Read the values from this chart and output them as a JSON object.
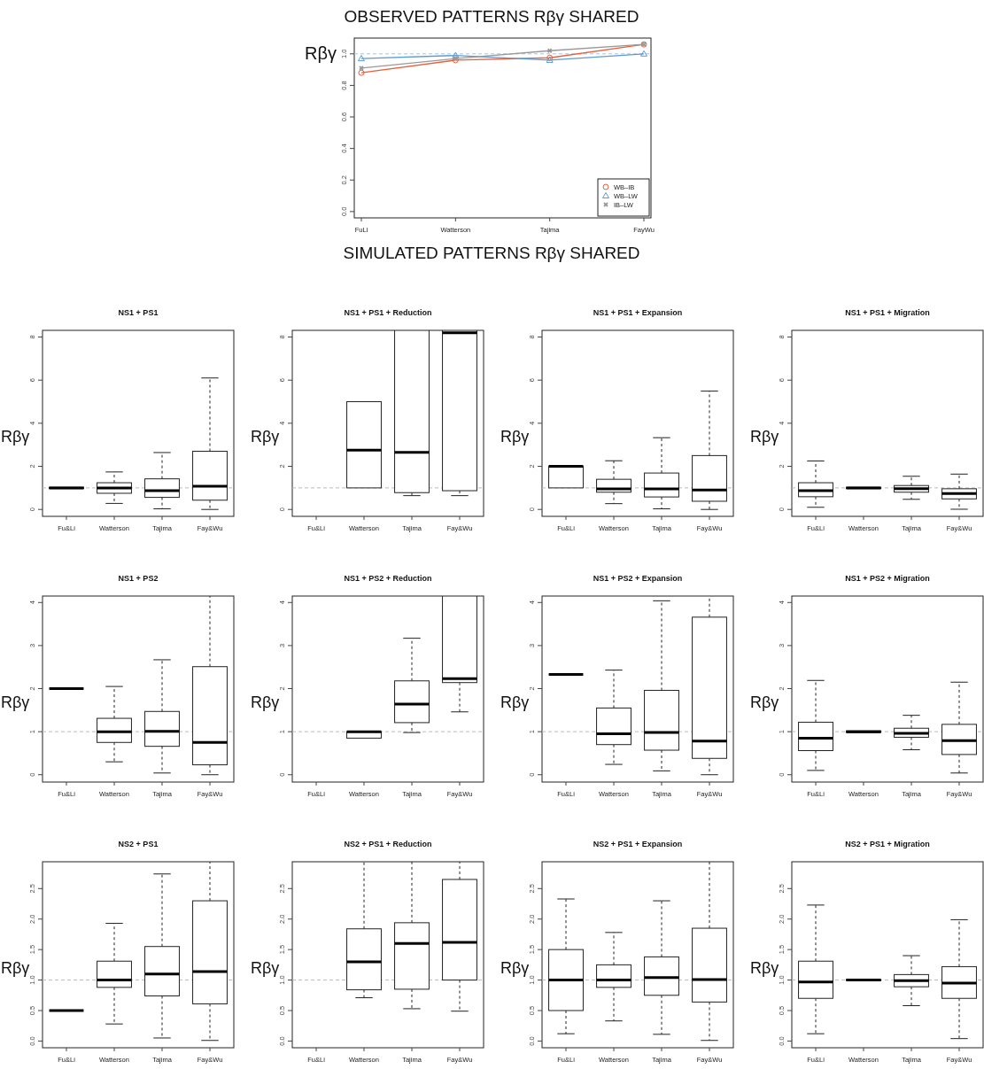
{
  "chart_data": [
    {
      "type": "line",
      "title": "OBSERVED PATTERNS Rβγ SHARED",
      "ylabel": "Rβγ",
      "annotations": [
        "SIMULATED PATTERNS Rβγ SHARED"
      ],
      "categories": [
        "FuLi",
        "Watterson",
        "Tajima",
        "FayWu"
      ],
      "ylim": [
        -0.04,
        1.1
      ],
      "yticks": [
        {
          "value": 0,
          "label": "0.0"
        },
        {
          "value": 0.2,
          "label": "0.2"
        },
        {
          "value": 0.4,
          "label": "0.4"
        },
        {
          "value": 0.6,
          "label": "0.6"
        },
        {
          "value": 0.8,
          "label": "0.8"
        },
        {
          "value": 1,
          "label": "1.0"
        }
      ],
      "grid": false,
      "legend": "bottom right",
      "ref_lines": [
        {
          "axis": "y",
          "value": 1,
          "color": "#a9c4dc",
          "line_style": "dashed"
        }
      ],
      "series": [
        {
          "name": "WB–IB",
          "color": "#e8603c",
          "marker": "circle",
          "values": [
            0.88,
            0.96,
            0.975,
            1.06
          ]
        },
        {
          "name": "WB–LW",
          "color": "#5b9bd5",
          "marker": "triangle",
          "values": [
            0.97,
            0.99,
            0.96,
            1.0
          ]
        },
        {
          "name": "IB–LW",
          "color": "#999999",
          "marker": "cross",
          "values": [
            0.91,
            0.97,
            1.02,
            1.06
          ]
        }
      ]
    },
    {
      "type": "box",
      "title": "NS1 + PS1",
      "ylabel": "Rβγ",
      "categories": [
        "Fu&Li",
        "Watterson",
        "Tajima",
        "Fay&Wu"
      ],
      "ylim": [
        -0.32,
        8.31
      ],
      "yticks": [
        0,
        2,
        4,
        6,
        8
      ],
      "ref_lines": [
        {
          "axis": "y",
          "value": 1,
          "color": "#bbbbbb",
          "line_style": "dashed"
        }
      ],
      "boxes": [
        {
          "low": 1,
          "q1": 0.97,
          "median": 1,
          "q3": 1.03,
          "high": 1
        },
        {
          "low": 0.28,
          "q1": 0.75,
          "median": 1.0,
          "q3": 1.24,
          "high": 1.74
        },
        {
          "low": 0.03,
          "q1": 0.56,
          "median": 0.87,
          "q3": 1.42,
          "high": 2.64
        },
        {
          "low": 0,
          "q1": 0.43,
          "median": 1.08,
          "q3": 2.7,
          "high": 6.1
        }
      ]
    },
    {
      "type": "box",
      "title": "NS1 + PS1 + Reduction",
      "ylabel": "Rβγ",
      "categories": [
        "Fu&Li",
        "Watterson",
        "Tajima",
        "Fay&Wu"
      ],
      "ylim": [
        -0.32,
        8.31
      ],
      "yticks": [
        0,
        2,
        4,
        6,
        8
      ],
      "ref_lines": [
        {
          "axis": "y",
          "value": 1,
          "color": "#bbbbbb",
          "line_style": "dashed"
        }
      ],
      "boxes": [
        null,
        {
          "low": 1,
          "q1": 1,
          "median": 2.75,
          "q3": 5,
          "high": 5
        },
        {
          "low": 0.64,
          "q1": 0.78,
          "median": 2.65,
          "q3": 8.31,
          "high": 8.31
        },
        {
          "low": 0.64,
          "q1": 0.87,
          "median": 8.2,
          "q3": 8.31,
          "high": 8.31
        }
      ]
    },
    {
      "type": "box",
      "title": "NS1 + PS1 + Expansion",
      "ylabel": "Rβγ",
      "categories": [
        "Fu&Li",
        "Watterson",
        "Tajima",
        "Fay&Wu"
      ],
      "ylim": [
        -0.32,
        8.31
      ],
      "yticks": [
        0,
        2,
        4,
        6,
        8
      ],
      "ref_lines": [
        {
          "axis": "y",
          "value": 1,
          "color": "#bbbbbb",
          "line_style": "dashed"
        }
      ],
      "boxes": [
        {
          "low": 1,
          "q1": 1,
          "median": 2,
          "q3": 2,
          "high": 2
        },
        {
          "low": 0.27,
          "q1": 0.8,
          "median": 0.95,
          "q3": 1.4,
          "high": 2.26
        },
        {
          "low": 0.03,
          "q1": 0.58,
          "median": 0.95,
          "q3": 1.69,
          "high": 3.33
        },
        {
          "low": 0,
          "q1": 0.38,
          "median": 0.9,
          "q3": 2.5,
          "high": 5.49
        }
      ]
    },
    {
      "type": "box",
      "title": "NS1 + PS1 + Migration",
      "ylabel": "Rβγ",
      "categories": [
        "Fu&Li",
        "Watterson",
        "Tajima",
        "Fay&Wu"
      ],
      "ylim": [
        -0.32,
        8.31
      ],
      "yticks": [
        0,
        2,
        4,
        6,
        8
      ],
      "ref_lines": [
        {
          "axis": "y",
          "value": 1,
          "color": "#bbbbbb",
          "line_style": "dashed"
        }
      ],
      "boxes": [
        {
          "low": 0.1,
          "q1": 0.59,
          "median": 0.87,
          "q3": 1.24,
          "high": 2.25
        },
        {
          "low": 1,
          "q1": 0.97,
          "median": 1,
          "q3": 1.03,
          "high": 1
        },
        {
          "low": 0.47,
          "q1": 0.8,
          "median": 0.96,
          "q3": 1.11,
          "high": 1.54
        },
        {
          "low": 0.01,
          "q1": 0.49,
          "median": 0.74,
          "q3": 0.96,
          "high": 1.64
        }
      ]
    },
    {
      "type": "box",
      "title": "NS1 + PS2",
      "ylabel": "Rβγ",
      "categories": [
        "Fu&Li",
        "Watterson",
        "Tajima",
        "Fay&Wu"
      ],
      "ylim": [
        -0.17,
        4.15
      ],
      "yticks": [
        0,
        1,
        2,
        3,
        4
      ],
      "ref_lines": [
        {
          "axis": "y",
          "value": 1,
          "color": "#bbbbbb",
          "line_style": "dashed"
        }
      ],
      "boxes": [
        {
          "low": 2,
          "q1": 2,
          "median": 2,
          "q3": 2,
          "high": 2
        },
        {
          "low": 0.3,
          "q1": 0.75,
          "median": 1.0,
          "q3": 1.31,
          "high": 2.05
        },
        {
          "low": 0.04,
          "q1": 0.66,
          "median": 1.01,
          "q3": 1.47,
          "high": 2.67
        },
        {
          "low": 0,
          "q1": 0.23,
          "median": 0.75,
          "q3": 2.51,
          "high": 4.15
        }
      ]
    },
    {
      "type": "box",
      "title": "NS1 + PS2 + Reduction",
      "ylabel": "Rβγ",
      "categories": [
        "Fu&Li",
        "Watterson",
        "Tajima",
        "Fay&Wu"
      ],
      "ylim": [
        -0.17,
        4.15
      ],
      "yticks": [
        0,
        1,
        2,
        3,
        4
      ],
      "ref_lines": [
        {
          "axis": "y",
          "value": 1,
          "color": "#bbbbbb",
          "line_style": "dashed"
        }
      ],
      "boxes": [
        null,
        {
          "low": 0.85,
          "q1": 0.85,
          "median": 1,
          "q3": 1,
          "high": 1
        },
        {
          "low": 0.98,
          "q1": 1.21,
          "median": 1.64,
          "q3": 2.18,
          "high": 3.17
        },
        {
          "low": 1.46,
          "q1": 2.14,
          "median": 2.23,
          "q3": 4.15,
          "high": 4.15
        }
      ]
    },
    {
      "type": "box",
      "title": "NS1 + PS2 + Expansion",
      "ylabel": "Rβγ",
      "categories": [
        "Fu&Li",
        "Watterson",
        "Tajima",
        "Fay&Wu"
      ],
      "ylim": [
        -0.17,
        4.15
      ],
      "yticks": [
        0,
        1,
        2,
        3,
        4
      ],
      "ref_lines": [
        {
          "axis": "y",
          "value": 1,
          "color": "#bbbbbb",
          "line_style": "dashed"
        }
      ],
      "boxes": [
        {
          "low": 2.33,
          "q1": 2.33,
          "median": 2.33,
          "q3": 2.33,
          "high": 2.33
        },
        {
          "low": 0.24,
          "q1": 0.7,
          "median": 0.95,
          "q3": 1.55,
          "high": 2.43
        },
        {
          "low": 0.09,
          "q1": 0.57,
          "median": 0.98,
          "q3": 1.96,
          "high": 4.04
        },
        {
          "low": 0,
          "q1": 0.38,
          "median": 0.78,
          "q3": 3.66,
          "high": 4.15
        }
      ]
    },
    {
      "type": "box",
      "title": "NS1 + PS2 + Migration",
      "ylabel": "Rβγ",
      "categories": [
        "Fu&Li",
        "Watterson",
        "Tajima",
        "Fay&Wu"
      ],
      "ylim": [
        -0.17,
        4.15
      ],
      "yticks": [
        0,
        1,
        2,
        3,
        4
      ],
      "ref_lines": [
        {
          "axis": "y",
          "value": 1,
          "color": "#bbbbbb",
          "line_style": "dashed"
        }
      ],
      "boxes": [
        {
          "low": 0.1,
          "q1": 0.56,
          "median": 0.85,
          "q3": 1.22,
          "high": 2.19
        },
        {
          "low": 1,
          "q1": 0.98,
          "median": 1,
          "q3": 1.02,
          "high": 1
        },
        {
          "low": 0.58,
          "q1": 0.87,
          "median": 0.96,
          "q3": 1.08,
          "high": 1.38
        },
        {
          "low": 0.04,
          "q1": 0.47,
          "median": 0.79,
          "q3": 1.17,
          "high": 2.15
        }
      ]
    },
    {
      "type": "box",
      "title": "NS2 + PS1",
      "ylabel": "Rβγ",
      "categories": [
        "Fu&Li",
        "Watterson",
        "Tajima",
        "Fay&Wu"
      ],
      "ylim": [
        -0.11,
        2.94
      ],
      "yticks": [
        {
          "value": 0,
          "label": "0.0"
        },
        {
          "value": 0.5,
          "label": "0.5"
        },
        {
          "value": 1,
          "label": "1.0"
        },
        {
          "value": 1.5,
          "label": "1.5"
        },
        {
          "value": 2,
          "label": "2.0"
        },
        {
          "value": 2.5,
          "label": "2.5"
        }
      ],
      "ref_lines": [
        {
          "axis": "y",
          "value": 1,
          "color": "#bbbbbb",
          "line_style": "dashed"
        }
      ],
      "boxes": [
        {
          "low": 0.5,
          "q1": 0.5,
          "median": 0.5,
          "q3": 0.5,
          "high": 0.5
        },
        {
          "low": 0.28,
          "q1": 0.88,
          "median": 1.0,
          "q3": 1.31,
          "high": 1.93
        },
        {
          "low": 0.05,
          "q1": 0.74,
          "median": 1.1,
          "q3": 1.55,
          "high": 2.74
        },
        {
          "low": 0.01,
          "q1": 0.61,
          "median": 1.14,
          "q3": 2.3,
          "high": 2.94
        }
      ]
    },
    {
      "type": "box",
      "title": "NS2 + PS1 + Reduction",
      "ylabel": "Rβγ",
      "categories": [
        "Fu&Li",
        "Watterson",
        "Tajima",
        "Fay&Wu"
      ],
      "ylim": [
        -0.11,
        2.94
      ],
      "yticks": [
        {
          "value": 0,
          "label": "0.0"
        },
        {
          "value": 0.5,
          "label": "0.5"
        },
        {
          "value": 1,
          "label": "1.0"
        },
        {
          "value": 1.5,
          "label": "1.5"
        },
        {
          "value": 2,
          "label": "2.0"
        },
        {
          "value": 2.5,
          "label": "2.5"
        }
      ],
      "ref_lines": [
        {
          "axis": "y",
          "value": 1,
          "color": "#bbbbbb",
          "line_style": "dashed"
        }
      ],
      "boxes": [
        null,
        {
          "low": 0.71,
          "q1": 0.84,
          "median": 1.3,
          "q3": 1.84,
          "high": 2.94
        },
        {
          "low": 0.53,
          "q1": 0.85,
          "median": 1.6,
          "q3": 1.94,
          "high": 2.94
        },
        {
          "low": 0.49,
          "q1": 1.0,
          "median": 1.62,
          "q3": 2.65,
          "high": 2.94
        }
      ]
    },
    {
      "type": "box",
      "title": "NS2 + PS1 + Expansion",
      "ylabel": "Rβγ",
      "categories": [
        "Fu&Li",
        "Watterson",
        "Tajima",
        "Fay&Wu"
      ],
      "ylim": [
        -0.11,
        2.94
      ],
      "yticks": [
        {
          "value": 0,
          "label": "0.0"
        },
        {
          "value": 0.5,
          "label": "0.5"
        },
        {
          "value": 1,
          "label": "1.0"
        },
        {
          "value": 1.5,
          "label": "1.5"
        },
        {
          "value": 2,
          "label": "2.0"
        },
        {
          "value": 2.5,
          "label": "2.5"
        }
      ],
      "ref_lines": [
        {
          "axis": "y",
          "value": 1,
          "color": "#bbbbbb",
          "line_style": "dashed"
        }
      ],
      "boxes": [
        {
          "low": 0.12,
          "q1": 0.5,
          "median": 1.0,
          "q3": 1.5,
          "high": 2.33
        },
        {
          "low": 0.33,
          "q1": 0.88,
          "median": 1.0,
          "q3": 1.25,
          "high": 1.78
        },
        {
          "low": 0.11,
          "q1": 0.75,
          "median": 1.04,
          "q3": 1.38,
          "high": 2.3
        },
        {
          "low": 0.01,
          "q1": 0.64,
          "median": 1.01,
          "q3": 1.85,
          "high": 2.94
        }
      ]
    },
    {
      "type": "box",
      "title": "NS2 + PS1 + Migration",
      "ylabel": "Rβγ",
      "categories": [
        "Fu&Li",
        "Watterson",
        "Tajima",
        "Fay&Wu"
      ],
      "ylim": [
        -0.11,
        2.94
      ],
      "yticks": [
        {
          "value": 0,
          "label": "0.0"
        },
        {
          "value": 0.5,
          "label": "0.5"
        },
        {
          "value": 1,
          "label": "1.0"
        },
        {
          "value": 1.5,
          "label": "1.5"
        },
        {
          "value": 2,
          "label": "2.0"
        },
        {
          "value": 2.5,
          "label": "2.5"
        }
      ],
      "ref_lines": [
        {
          "axis": "y",
          "value": 1,
          "color": "#bbbbbb",
          "line_style": "dashed"
        }
      ],
      "boxes": [
        {
          "low": 0.12,
          "q1": 0.7,
          "median": 0.97,
          "q3": 1.31,
          "high": 2.23
        },
        {
          "low": 1,
          "q1": 0.99,
          "median": 1,
          "q3": 1.01,
          "high": 1
        },
        {
          "low": 0.58,
          "q1": 0.89,
          "median": 0.99,
          "q3": 1.09,
          "high": 1.4
        },
        {
          "low": 0.04,
          "q1": 0.7,
          "median": 0.95,
          "q3": 1.22,
          "high": 1.99
        }
      ]
    }
  ]
}
